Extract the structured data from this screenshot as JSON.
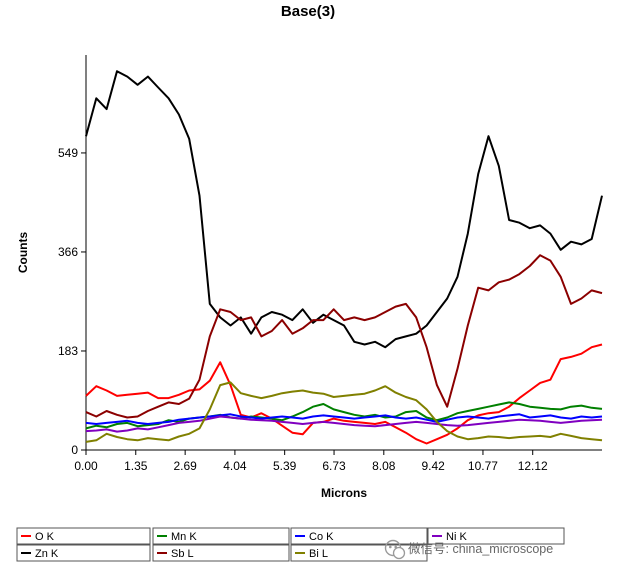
{
  "chart_data": {
    "type": "line",
    "title": "Base(3)",
    "xlabel": "Microns",
    "ylabel": "Counts",
    "xlim": [
      0,
      14.0
    ],
    "ylim": [
      0,
      730
    ],
    "x_ticks": [
      "0.00",
      "1.35",
      "2.69",
      "4.04",
      "5.39",
      "6.73",
      "8.08",
      "9.42",
      "10.77",
      "12.12"
    ],
    "y_ticks": [
      "0",
      "183",
      "366",
      "549"
    ],
    "x": [
      0.0,
      0.28,
      0.56,
      0.84,
      1.12,
      1.4,
      1.68,
      1.96,
      2.24,
      2.52,
      2.8,
      3.08,
      3.36,
      3.64,
      3.92,
      4.2,
      4.48,
      4.76,
      5.04,
      5.32,
      5.6,
      5.88,
      6.16,
      6.44,
      6.72,
      7.0,
      7.28,
      7.56,
      7.84,
      8.12,
      8.4,
      8.68,
      8.96,
      9.24,
      9.52,
      9.8,
      10.08,
      10.36,
      10.64,
      10.92,
      11.2,
      11.48,
      11.76,
      12.04,
      12.32,
      12.6,
      12.88,
      13.16,
      13.44,
      13.72,
      14.0
    ],
    "series": [
      {
        "name": "O K",
        "color": "#ff0000",
        "values": [
          100,
          118,
          110,
          100,
          102,
          104,
          106,
          96,
          96,
          102,
          110,
          112,
          128,
          162,
          120,
          65,
          60,
          68,
          58,
          45,
          32,
          29,
          50,
          52,
          58,
          54,
          52,
          50,
          48,
          52,
          42,
          32,
          20,
          12,
          20,
          28,
          40,
          55,
          64,
          68,
          70,
          80,
          96,
          110,
          124,
          130,
          168,
          172,
          178,
          190,
          195
        ]
      },
      {
        "name": "Mn K",
        "color": "#008000",
        "values": [
          40,
          45,
          42,
          48,
          50,
          44,
          46,
          48,
          55,
          52,
          58,
          60,
          62,
          65,
          60,
          58,
          62,
          60,
          58,
          55,
          62,
          70,
          80,
          85,
          75,
          70,
          65,
          62,
          65,
          60,
          62,
          70,
          72,
          60,
          55,
          60,
          68,
          72,
          76,
          80,
          84,
          88,
          85,
          80,
          78,
          76,
          75,
          80,
          82,
          78,
          76
        ]
      },
      {
        "name": "Co K",
        "color": "#0000ff",
        "values": [
          50,
          48,
          50,
          52,
          54,
          50,
          48,
          50,
          52,
          56,
          58,
          60,
          62,
          64,
          66,
          62,
          60,
          58,
          60,
          62,
          60,
          58,
          62,
          64,
          62,
          60,
          58,
          60,
          62,
          64,
          60,
          58,
          60,
          56,
          52,
          56,
          60,
          62,
          60,
          58,
          62,
          64,
          66,
          60,
          62,
          64,
          60,
          58,
          62,
          60,
          62
        ]
      },
      {
        "name": "Ni K",
        "color": "#8000c0",
        "values": [
          35,
          36,
          38,
          34,
          36,
          40,
          38,
          42,
          46,
          50,
          52,
          54,
          58,
          62,
          60,
          58,
          56,
          55,
          54,
          52,
          50,
          48,
          50,
          52,
          50,
          48,
          46,
          45,
          44,
          46,
          48,
          50,
          52,
          50,
          48,
          46,
          45,
          46,
          48,
          50,
          52,
          54,
          56,
          55,
          54,
          52,
          50,
          52,
          54,
          55,
          56
        ]
      },
      {
        "name": "Zn K",
        "color": "#000000",
        "values": [
          580,
          650,
          630,
          700,
          690,
          675,
          690,
          670,
          650,
          620,
          575,
          470,
          270,
          245,
          230,
          245,
          215,
          245,
          255,
          250,
          240,
          260,
          235,
          250,
          240,
          230,
          200,
          195,
          200,
          190,
          205,
          210,
          215,
          230,
          255,
          280,
          320,
          400,
          510,
          580,
          525,
          425,
          420,
          410,
          415,
          400,
          370,
          385,
          380,
          390,
          470
        ]
      },
      {
        "name": "Sb L",
        "color": "#8b0000",
        "values": [
          70,
          62,
          72,
          65,
          60,
          62,
          72,
          80,
          88,
          85,
          95,
          130,
          210,
          260,
          255,
          240,
          245,
          210,
          220,
          240,
          215,
          225,
          240,
          240,
          260,
          240,
          245,
          240,
          245,
          255,
          265,
          270,
          245,
          190,
          120,
          80,
          150,
          230,
          300,
          295,
          310,
          315,
          325,
          340,
          360,
          350,
          320,
          270,
          280,
          295,
          290
        ]
      },
      {
        "name": "Bi L",
        "color": "#808000",
        "values": [
          15,
          18,
          30,
          24,
          20,
          18,
          22,
          20,
          18,
          25,
          30,
          40,
          75,
          120,
          125,
          105,
          100,
          96,
          100,
          105,
          108,
          110,
          106,
          104,
          98,
          100,
          102,
          104,
          110,
          118,
          106,
          98,
          92,
          75,
          52,
          35,
          25,
          20,
          22,
          25,
          24,
          22,
          24,
          25,
          26,
          24,
          30,
          26,
          22,
          20,
          18
        ]
      }
    ],
    "legend_position": "bottom",
    "grid": false
  },
  "watermark": "微信号: china_microscope"
}
